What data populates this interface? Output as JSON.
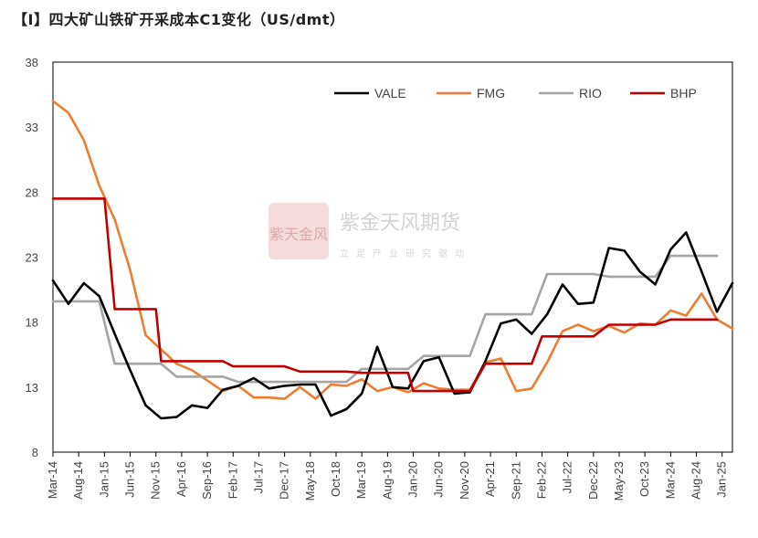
{
  "title": "【Ⅰ】四大矿山铁矿开采成本C1变化（US/dmt）",
  "watermark": {
    "logo": "紫天金风",
    "name": "紫金天风期货",
    "slogan": "立足产业研究驱动"
  },
  "chart_data": {
    "type": "line",
    "ylim": [
      8,
      38
    ],
    "yticks": [
      8,
      13,
      18,
      23,
      28,
      33,
      38
    ],
    "xlim": [
      0,
      132
    ],
    "x_tick_labels": [
      "Mar-14",
      "Aug-14",
      "Jan-15",
      "Jun-15",
      "Nov-15",
      "Apr-16",
      "Sep-16",
      "Feb-17",
      "Jul-17",
      "Dec-17",
      "May-18",
      "Oct-18",
      "Mar-19",
      "Aug-19",
      "Jan-20",
      "Jun-20",
      "Nov-20",
      "Apr-21",
      "Sep-21",
      "Feb-22",
      "Jul-22",
      "Dec-22",
      "May-23",
      "Oct-23",
      "Mar-24",
      "Aug-24",
      "Jan-25"
    ],
    "x_tick_positions": [
      0,
      5,
      10,
      15,
      20,
      25,
      30,
      35,
      40,
      45,
      50,
      55,
      60,
      65,
      70,
      75,
      80,
      85,
      90,
      95,
      100,
      105,
      110,
      115,
      120,
      125,
      130
    ],
    "grid": false,
    "legend_position": "top",
    "series": [
      {
        "name": "VALE",
        "color": "#000000",
        "x": [
          0,
          3,
          6,
          9,
          12,
          15,
          18,
          21,
          24,
          27,
          30,
          33,
          36,
          39,
          42,
          45,
          48,
          51,
          54,
          57,
          60,
          63,
          66,
          69,
          72,
          75,
          78,
          81,
          84,
          87,
          90,
          93,
          96,
          99,
          102,
          105,
          108,
          111,
          114,
          117,
          120,
          123,
          126,
          129,
          132
        ],
        "y": [
          21.2,
          19.4,
          21.0,
          20.0,
          17.1,
          14.3,
          11.6,
          10.6,
          10.7,
          11.6,
          11.4,
          12.8,
          13.1,
          13.7,
          12.9,
          13.1,
          13.2,
          13.2,
          10.8,
          11.3,
          12.5,
          16.1,
          13.0,
          12.9,
          15.0,
          15.3,
          12.5,
          12.6,
          15.0,
          17.9,
          18.2,
          17.1,
          18.6,
          20.9,
          19.4,
          19.5,
          23.7,
          23.5,
          21.9,
          20.9,
          23.6,
          24.9,
          21.9,
          18.8,
          21.0
        ]
      },
      {
        "name": "FMG",
        "color": "#ED7D31",
        "x": [
          0,
          3,
          6,
          9,
          12,
          15,
          18,
          21,
          24,
          27,
          30,
          33,
          36,
          39,
          42,
          45,
          48,
          51,
          54,
          57,
          60,
          63,
          66,
          69,
          72,
          75,
          78,
          81,
          84,
          87,
          90,
          93,
          96,
          99,
          102,
          105,
          108,
          111,
          114,
          117,
          120,
          123,
          126,
          129,
          132
        ],
        "y": [
          35.0,
          34.1,
          32.0,
          28.5,
          25.9,
          22.0,
          17.0,
          15.9,
          14.8,
          14.3,
          13.5,
          12.7,
          13.1,
          12.2,
          12.2,
          12.1,
          13.0,
          12.1,
          13.2,
          13.1,
          13.6,
          12.7,
          13.0,
          12.6,
          13.3,
          12.9,
          12.8,
          12.8,
          14.9,
          15.2,
          12.7,
          12.9,
          14.9,
          17.3,
          17.8,
          17.3,
          17.7,
          17.2,
          17.9,
          17.8,
          18.9,
          18.5,
          20.2,
          18.2,
          17.5
        ]
      },
      {
        "name": "RIO",
        "color": "#A5A5A5",
        "x": [
          0,
          3,
          6,
          9,
          12,
          15,
          18,
          21,
          24,
          27,
          30,
          33,
          36,
          39,
          42,
          45,
          48,
          51,
          54,
          57,
          60,
          63,
          66,
          69,
          72,
          75,
          78,
          81,
          84,
          87,
          90,
          93,
          96,
          99,
          102,
          105,
          108,
          111,
          114,
          117,
          120,
          123,
          126,
          129
        ],
        "y": [
          19.6,
          19.6,
          19.6,
          19.6,
          14.8,
          14.8,
          14.8,
          14.8,
          13.8,
          13.8,
          13.8,
          13.8,
          13.4,
          13.4,
          13.4,
          13.4,
          13.4,
          13.4,
          13.4,
          13.4,
          14.4,
          14.4,
          14.4,
          14.4,
          15.4,
          15.4,
          15.4,
          15.4,
          18.6,
          18.6,
          18.6,
          18.6,
          21.7,
          21.7,
          21.7,
          21.7,
          21.5,
          21.5,
          21.5,
          21.5,
          23.1,
          23.1,
          23.1,
          23.1
        ]
      },
      {
        "name": "BHP",
        "color": "#C00000",
        "x": [
          0,
          3,
          6,
          9,
          10,
          12,
          15,
          18,
          20,
          21,
          24,
          27,
          30,
          33,
          35,
          36,
          39,
          42,
          45,
          48,
          50,
          51,
          54,
          57,
          60,
          63,
          65,
          66,
          69,
          70,
          72,
          75,
          78,
          81,
          84,
          85,
          87,
          90,
          93,
          95,
          96,
          99,
          102,
          105,
          108,
          110,
          111,
          114,
          117,
          120,
          123,
          126,
          129
        ],
        "y": [
          27.5,
          27.5,
          27.5,
          27.5,
          27.5,
          19.0,
          19.0,
          19.0,
          19.0,
          15.0,
          15.0,
          15.0,
          15.0,
          15.0,
          14.6,
          14.6,
          14.6,
          14.6,
          14.6,
          14.2,
          14.2,
          14.2,
          14.2,
          14.2,
          14.1,
          14.1,
          14.1,
          14.1,
          14.1,
          12.7,
          12.7,
          12.7,
          12.7,
          12.7,
          14.8,
          14.8,
          14.8,
          14.8,
          14.8,
          16.9,
          16.9,
          16.9,
          16.9,
          16.9,
          17.8,
          17.8,
          17.8,
          17.8,
          17.8,
          18.2,
          18.2,
          18.2,
          18.2
        ]
      }
    ]
  }
}
